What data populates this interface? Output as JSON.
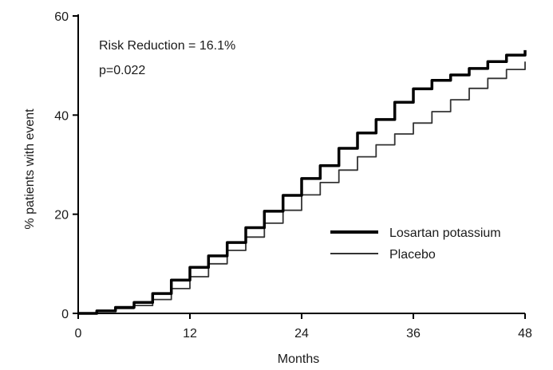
{
  "chart_data": {
    "type": "line",
    "xlabel": "Months",
    "ylabel": "% patients with event",
    "xlim": [
      0,
      48
    ],
    "ylim": [
      0,
      60
    ],
    "xticks": [
      "0",
      "12",
      "24",
      "36",
      "48"
    ],
    "yticks": [
      "0",
      "20",
      "40",
      "60"
    ],
    "grid": false,
    "legend_position": "lower-right",
    "annotations": [
      "Risk Reduction = 16.1%",
      "p=0.022"
    ],
    "series": [
      {
        "name": "Losartan potassium",
        "style": "thick-solid",
        "color": "#000000",
        "x": [
          0,
          2,
          4,
          6,
          8,
          10,
          12,
          14,
          16,
          18,
          20,
          22,
          24,
          26,
          28,
          30,
          32,
          34,
          36,
          38,
          40,
          42,
          44,
          46,
          48
        ],
        "y": [
          0,
          0.5,
          1.2,
          2.2,
          4.0,
          6.7,
          9.3,
          11.6,
          14.3,
          17.3,
          20.6,
          23.8,
          27.2,
          29.8,
          33.3,
          36.4,
          39.1,
          42.6,
          45.3,
          47.0,
          48.1,
          49.4,
          50.8,
          52.1,
          53.1
        ]
      },
      {
        "name": "Placebo",
        "style": "thin-solid",
        "color": "#333333",
        "x": [
          0,
          2,
          4,
          6,
          8,
          10,
          12,
          14,
          16,
          18,
          20,
          22,
          24,
          26,
          28,
          30,
          32,
          34,
          36,
          38,
          40,
          42,
          44,
          46,
          48
        ],
        "y": [
          0,
          0.4,
          1.0,
          1.6,
          2.8,
          5.0,
          7.4,
          10.0,
          12.7,
          15.4,
          18.2,
          20.8,
          23.9,
          26.4,
          28.9,
          31.6,
          34.0,
          36.2,
          38.4,
          40.7,
          43.1,
          45.4,
          47.4,
          49.2,
          50.8
        ]
      }
    ]
  }
}
